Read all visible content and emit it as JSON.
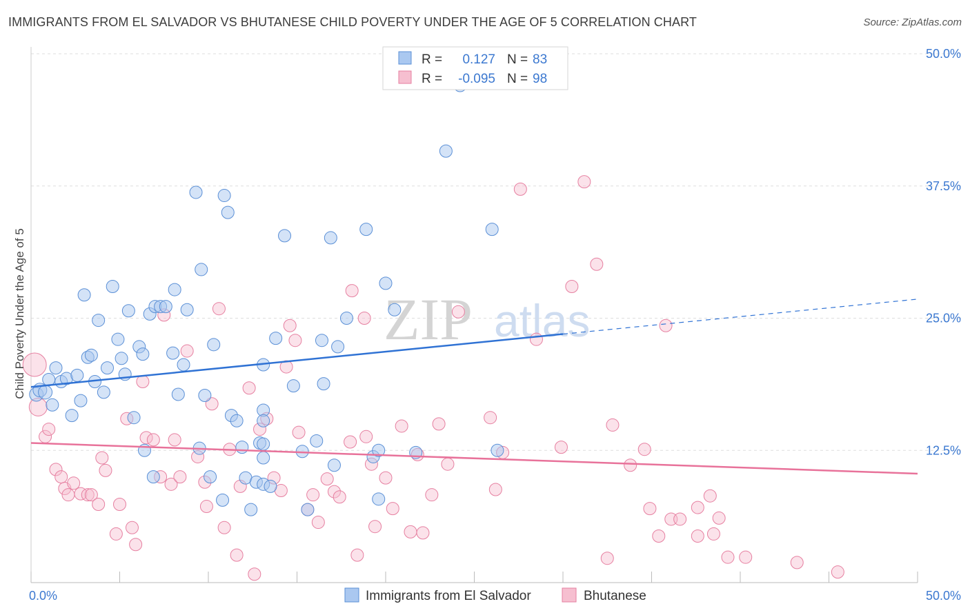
{
  "title": "IMMIGRANTS FROM EL SALVADOR VS BHUTANESE CHILD POVERTY UNDER THE AGE OF 5 CORRELATION CHART",
  "source": "Source: ZipAtlas.com",
  "watermark": {
    "zip": "ZIP",
    "atlas": "atlas"
  },
  "colors": {
    "blue_fill": "#aac8f0",
    "blue_stroke": "#5a8fd6",
    "blue_line": "#2f72d4",
    "pink_fill": "#f6bfd0",
    "pink_stroke": "#e67fa0",
    "pink_line": "#e8729a",
    "grid": "#dddddd",
    "value_text": "#3b78d0"
  },
  "legend": {
    "rows": [
      {
        "r_label": "R =",
        "r_value": "0.127",
        "n_label": "N =",
        "n_value": "83"
      },
      {
        "r_label": "R =",
        "r_value": "-0.095",
        "n_label": "N =",
        "n_value": "98"
      }
    ]
  },
  "chart_data": {
    "type": "scatter",
    "title": "IMMIGRANTS FROM EL SALVADOR VS BHUTANESE CHILD POVERTY UNDER THE AGE OF 5 CORRELATION CHART",
    "xlabel": "",
    "ylabel": "Child Poverty Under the Age of 5",
    "xlim": [
      0,
      50
    ],
    "ylim": [
      0,
      50
    ],
    "x_tick_labels": [
      "0.0%",
      "50.0%"
    ],
    "y_ticks": [
      12.5,
      25.0,
      37.5,
      50.0
    ],
    "y_tick_labels": [
      "12.5%",
      "25.0%",
      "37.5%",
      "50.0%"
    ],
    "grid": true,
    "legend_position": "top-center",
    "series": [
      {
        "name": "Immigrants from El Salvador",
        "color": "#aac8f0",
        "trend": {
          "x": [
            0,
            30
          ],
          "y": [
            18.5,
            23.5
          ],
          "dashed_extension": {
            "x": [
              30,
              50
            ],
            "y": [
              23.5,
              26.8
            ]
          }
        },
        "points": [
          [
            0.3,
            17.8
          ],
          [
            0.5,
            18.2
          ],
          [
            0.8,
            18
          ],
          [
            1,
            19.2
          ],
          [
            1.2,
            16.8
          ],
          [
            1.4,
            20.3
          ],
          [
            1.7,
            19
          ],
          [
            2,
            19.3
          ],
          [
            2.3,
            15.8
          ],
          [
            2.6,
            19.6
          ],
          [
            2.8,
            17.2
          ],
          [
            3,
            27.2
          ],
          [
            3.2,
            21.3
          ],
          [
            3.4,
            21.5
          ],
          [
            3.6,
            19
          ],
          [
            3.8,
            24.8
          ],
          [
            4.1,
            18
          ],
          [
            4.3,
            20.3
          ],
          [
            4.6,
            28
          ],
          [
            4.9,
            23
          ],
          [
            5.1,
            21.2
          ],
          [
            5.3,
            19.7
          ],
          [
            5.5,
            25.7
          ],
          [
            5.8,
            15.6
          ],
          [
            6.1,
            22.3
          ],
          [
            6.3,
            21.6
          ],
          [
            6.4,
            12.5
          ],
          [
            6.7,
            25.4
          ],
          [
            6.9,
            10
          ],
          [
            7,
            26.1
          ],
          [
            7.3,
            26.1
          ],
          [
            7.6,
            26.1
          ],
          [
            8,
            21.7
          ],
          [
            8.1,
            27.7
          ],
          [
            8.3,
            17.8
          ],
          [
            8.6,
            20.6
          ],
          [
            8.8,
            25.8
          ],
          [
            9.3,
            36.9
          ],
          [
            9.5,
            12.7
          ],
          [
            9.6,
            29.6
          ],
          [
            9.8,
            17.7
          ],
          [
            10.1,
            10
          ],
          [
            10.3,
            22.5
          ],
          [
            10.8,
            7.8
          ],
          [
            10.9,
            36.6
          ],
          [
            11.1,
            35
          ],
          [
            11.3,
            15.8
          ],
          [
            11.6,
            15.3
          ],
          [
            11.9,
            12.8
          ],
          [
            12.1,
            9.9
          ],
          [
            12.4,
            6.9
          ],
          [
            12.7,
            9.5
          ],
          [
            12.9,
            13.2
          ],
          [
            13.1,
            9.3
          ],
          [
            13.1,
            16.3
          ],
          [
            13.1,
            15.3
          ],
          [
            13.1,
            20.6
          ],
          [
            13.1,
            11.8
          ],
          [
            13.5,
            9.1
          ],
          [
            13.1,
            13.1
          ],
          [
            13.8,
            23.1
          ],
          [
            14.3,
            32.8
          ],
          [
            14.8,
            18.6
          ],
          [
            15.3,
            12.4
          ],
          [
            15.6,
            6.9
          ],
          [
            16.1,
            13.4
          ],
          [
            16.4,
            22.9
          ],
          [
            16.5,
            18.8
          ],
          [
            16.9,
            32.6
          ],
          [
            17.1,
            11.1
          ],
          [
            17.3,
            22.3
          ],
          [
            17.8,
            25
          ],
          [
            18.9,
            33.4
          ],
          [
            19.3,
            11.9
          ],
          [
            19.6,
            12.5
          ],
          [
            19.6,
            7.9
          ],
          [
            20,
            28.3
          ],
          [
            20.5,
            25.8
          ],
          [
            21.7,
            12.3
          ],
          [
            23.4,
            40.8
          ],
          [
            24.2,
            47
          ],
          [
            26,
            33.4
          ],
          [
            26.3,
            12.5
          ]
        ]
      },
      {
        "name": "Bhutanese",
        "color": "#f6bfd0",
        "trend": {
          "x": [
            0,
            50
          ],
          "y": [
            13.2,
            10.3
          ]
        },
        "points": [
          [
            0.2,
            20.6
          ],
          [
            0.4,
            16.6
          ],
          [
            0.8,
            13.8
          ],
          [
            1,
            14.5
          ],
          [
            1.4,
            10.7
          ],
          [
            1.7,
            10
          ],
          [
            1.9,
            8.9
          ],
          [
            2.1,
            8.3
          ],
          [
            2.4,
            9.4
          ],
          [
            2.8,
            8.4
          ],
          [
            3.2,
            8.3
          ],
          [
            3.4,
            8.3
          ],
          [
            3.8,
            7.4
          ],
          [
            4,
            11.8
          ],
          [
            4.2,
            10.6
          ],
          [
            4.8,
            4.6
          ],
          [
            5,
            7.4
          ],
          [
            5.4,
            15.5
          ],
          [
            5.7,
            5.2
          ],
          [
            5.9,
            3.6
          ],
          [
            6.3,
            19
          ],
          [
            6.5,
            13.7
          ],
          [
            6.9,
            13.5
          ],
          [
            7.3,
            10
          ],
          [
            7.5,
            25.3
          ],
          [
            7.9,
            9.3
          ],
          [
            8.1,
            13.5
          ],
          [
            8.4,
            10
          ],
          [
            8.8,
            21.9
          ],
          [
            9.4,
            11.9
          ],
          [
            9.8,
            9.5
          ],
          [
            9.9,
            7.2
          ],
          [
            10.2,
            16.9
          ],
          [
            10.6,
            25.9
          ],
          [
            10.9,
            5.2
          ],
          [
            11.2,
            12.6
          ],
          [
            11.6,
            2.6
          ],
          [
            11.8,
            9.1
          ],
          [
            12.3,
            18.4
          ],
          [
            12.6,
            0.8
          ],
          [
            12.9,
            14.5
          ],
          [
            13.3,
            15.5
          ],
          [
            13.7,
            9.9
          ],
          [
            14.1,
            8.7
          ],
          [
            14.4,
            20.4
          ],
          [
            14.6,
            24.3
          ],
          [
            14.9,
            22.9
          ],
          [
            15.1,
            14.2
          ],
          [
            15.6,
            6.9
          ],
          [
            15.9,
            8.3
          ],
          [
            16.2,
            5.7
          ],
          [
            16.7,
            9.8
          ],
          [
            17.1,
            8.6
          ],
          [
            17.4,
            8.1
          ],
          [
            18,
            13.3
          ],
          [
            18.1,
            27.6
          ],
          [
            18.4,
            2.6
          ],
          [
            18.8,
            25
          ],
          [
            18.9,
            13.8
          ],
          [
            19.2,
            11.2
          ],
          [
            19.4,
            5.3
          ],
          [
            20,
            9.9
          ],
          [
            20.4,
            7
          ],
          [
            20.9,
            14.8
          ],
          [
            21.4,
            4.8
          ],
          [
            21.8,
            12.1
          ],
          [
            22.1,
            4.7
          ],
          [
            22.6,
            8.3
          ],
          [
            23,
            15
          ],
          [
            23.5,
            11.2
          ],
          [
            24.1,
            25.6
          ],
          [
            25.9,
            15.6
          ],
          [
            26.2,
            8.8
          ],
          [
            26.6,
            12.3
          ],
          [
            27.6,
            37.2
          ],
          [
            28.5,
            23
          ],
          [
            29.9,
            12.8
          ],
          [
            30.5,
            28
          ],
          [
            31.2,
            37.9
          ],
          [
            31.9,
            30.1
          ],
          [
            32.5,
            2.3
          ],
          [
            32.8,
            14.9
          ],
          [
            33.8,
            11.1
          ],
          [
            34.6,
            12.6
          ],
          [
            34.9,
            7
          ],
          [
            35.4,
            4.4
          ],
          [
            35.8,
            24.3
          ],
          [
            36.1,
            6
          ],
          [
            36.6,
            6
          ],
          [
            37.6,
            7.1
          ],
          [
            37.6,
            4.4
          ],
          [
            38.3,
            8.2
          ],
          [
            38.5,
            4.6
          ],
          [
            38.8,
            6.1
          ],
          [
            39.3,
            2.4
          ],
          [
            40.3,
            2.4
          ],
          [
            43.2,
            1.9
          ],
          [
            45.5,
            1
          ]
        ]
      }
    ]
  },
  "bottom_legend": {
    "items": [
      {
        "label": "Immigrants from El Salvador"
      },
      {
        "label": "Bhutanese"
      }
    ]
  }
}
